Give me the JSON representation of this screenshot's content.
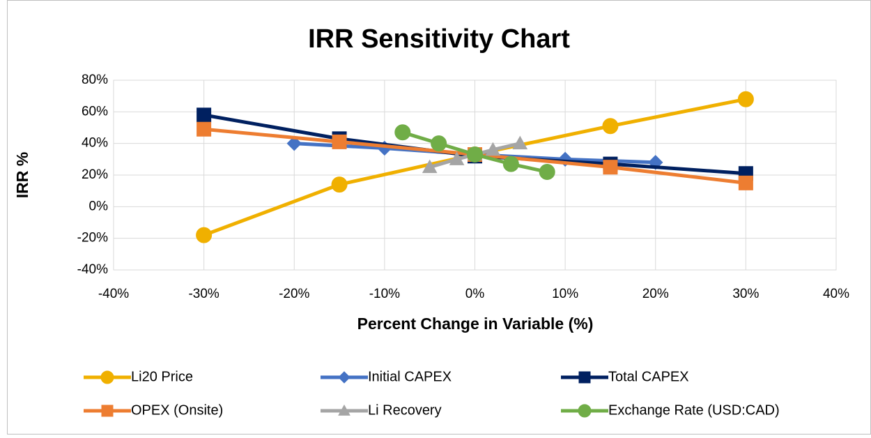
{
  "chart_data": {
    "type": "line",
    "title": "IRR Sensitivity Chart",
    "x_label": "Percent Change in Variable (%)",
    "y_label": "IRR %",
    "xlim": [
      -40,
      40
    ],
    "xticks": [
      {
        "value": -40,
        "label": "-40%"
      },
      {
        "value": -30,
        "label": "-30%"
      },
      {
        "value": -20,
        "label": "-20%"
      },
      {
        "value": -10,
        "label": "-10%"
      },
      {
        "value": 0,
        "label": "0%"
      },
      {
        "value": 10,
        "label": "10%"
      },
      {
        "value": 20,
        "label": "20%"
      },
      {
        "value": 30,
        "label": "30%"
      },
      {
        "value": 40,
        "label": "40%"
      }
    ],
    "ylim": [
      -40,
      80
    ],
    "yticks": [
      {
        "value": -40,
        "label": "-40%"
      },
      {
        "value": -20,
        "label": "-20%"
      },
      {
        "value": 0,
        "label": "0%"
      },
      {
        "value": 20,
        "label": "20%"
      },
      {
        "value": 40,
        "label": "40%"
      },
      {
        "value": 60,
        "label": "60%"
      },
      {
        "value": 80,
        "label": "80%"
      }
    ],
    "grid": true,
    "legend": "bottom",
    "series": [
      {
        "name": "Li20 Price",
        "color": "#f0b000",
        "marker": "circle",
        "x": [
          -30,
          -15,
          0,
          15,
          30
        ],
        "values": [
          -18,
          14,
          33,
          51,
          68
        ]
      },
      {
        "name": "Initial CAPEX",
        "color": "#4472c4",
        "marker": "diamond",
        "x": [
          -20,
          -10,
          0,
          10,
          20
        ],
        "values": [
          40,
          37,
          33,
          30,
          28
        ]
      },
      {
        "name": "Total CAPEX",
        "color": "#002060",
        "marker": "square",
        "x": [
          -30,
          -15,
          0,
          15,
          30
        ],
        "values": [
          58,
          43,
          32,
          27,
          21
        ]
      },
      {
        "name": "OPEX (Onsite)",
        "color": "#ed7d31",
        "marker": "square",
        "x": [
          -30,
          -15,
          0,
          15,
          30
        ],
        "values": [
          49,
          41,
          33,
          25,
          15
        ]
      },
      {
        "name": "Li Recovery",
        "color": "#a5a5a5",
        "marker": "triangle",
        "x": [
          -5,
          -2,
          0,
          2,
          5
        ],
        "values": [
          25,
          30,
          33,
          36,
          40
        ]
      },
      {
        "name": "Exchange Rate (USD:CAD)",
        "color": "#70ad47",
        "marker": "circle",
        "x": [
          -8,
          -4,
          0,
          4,
          8
        ],
        "values": [
          47,
          40,
          33,
          27,
          22
        ]
      }
    ]
  }
}
